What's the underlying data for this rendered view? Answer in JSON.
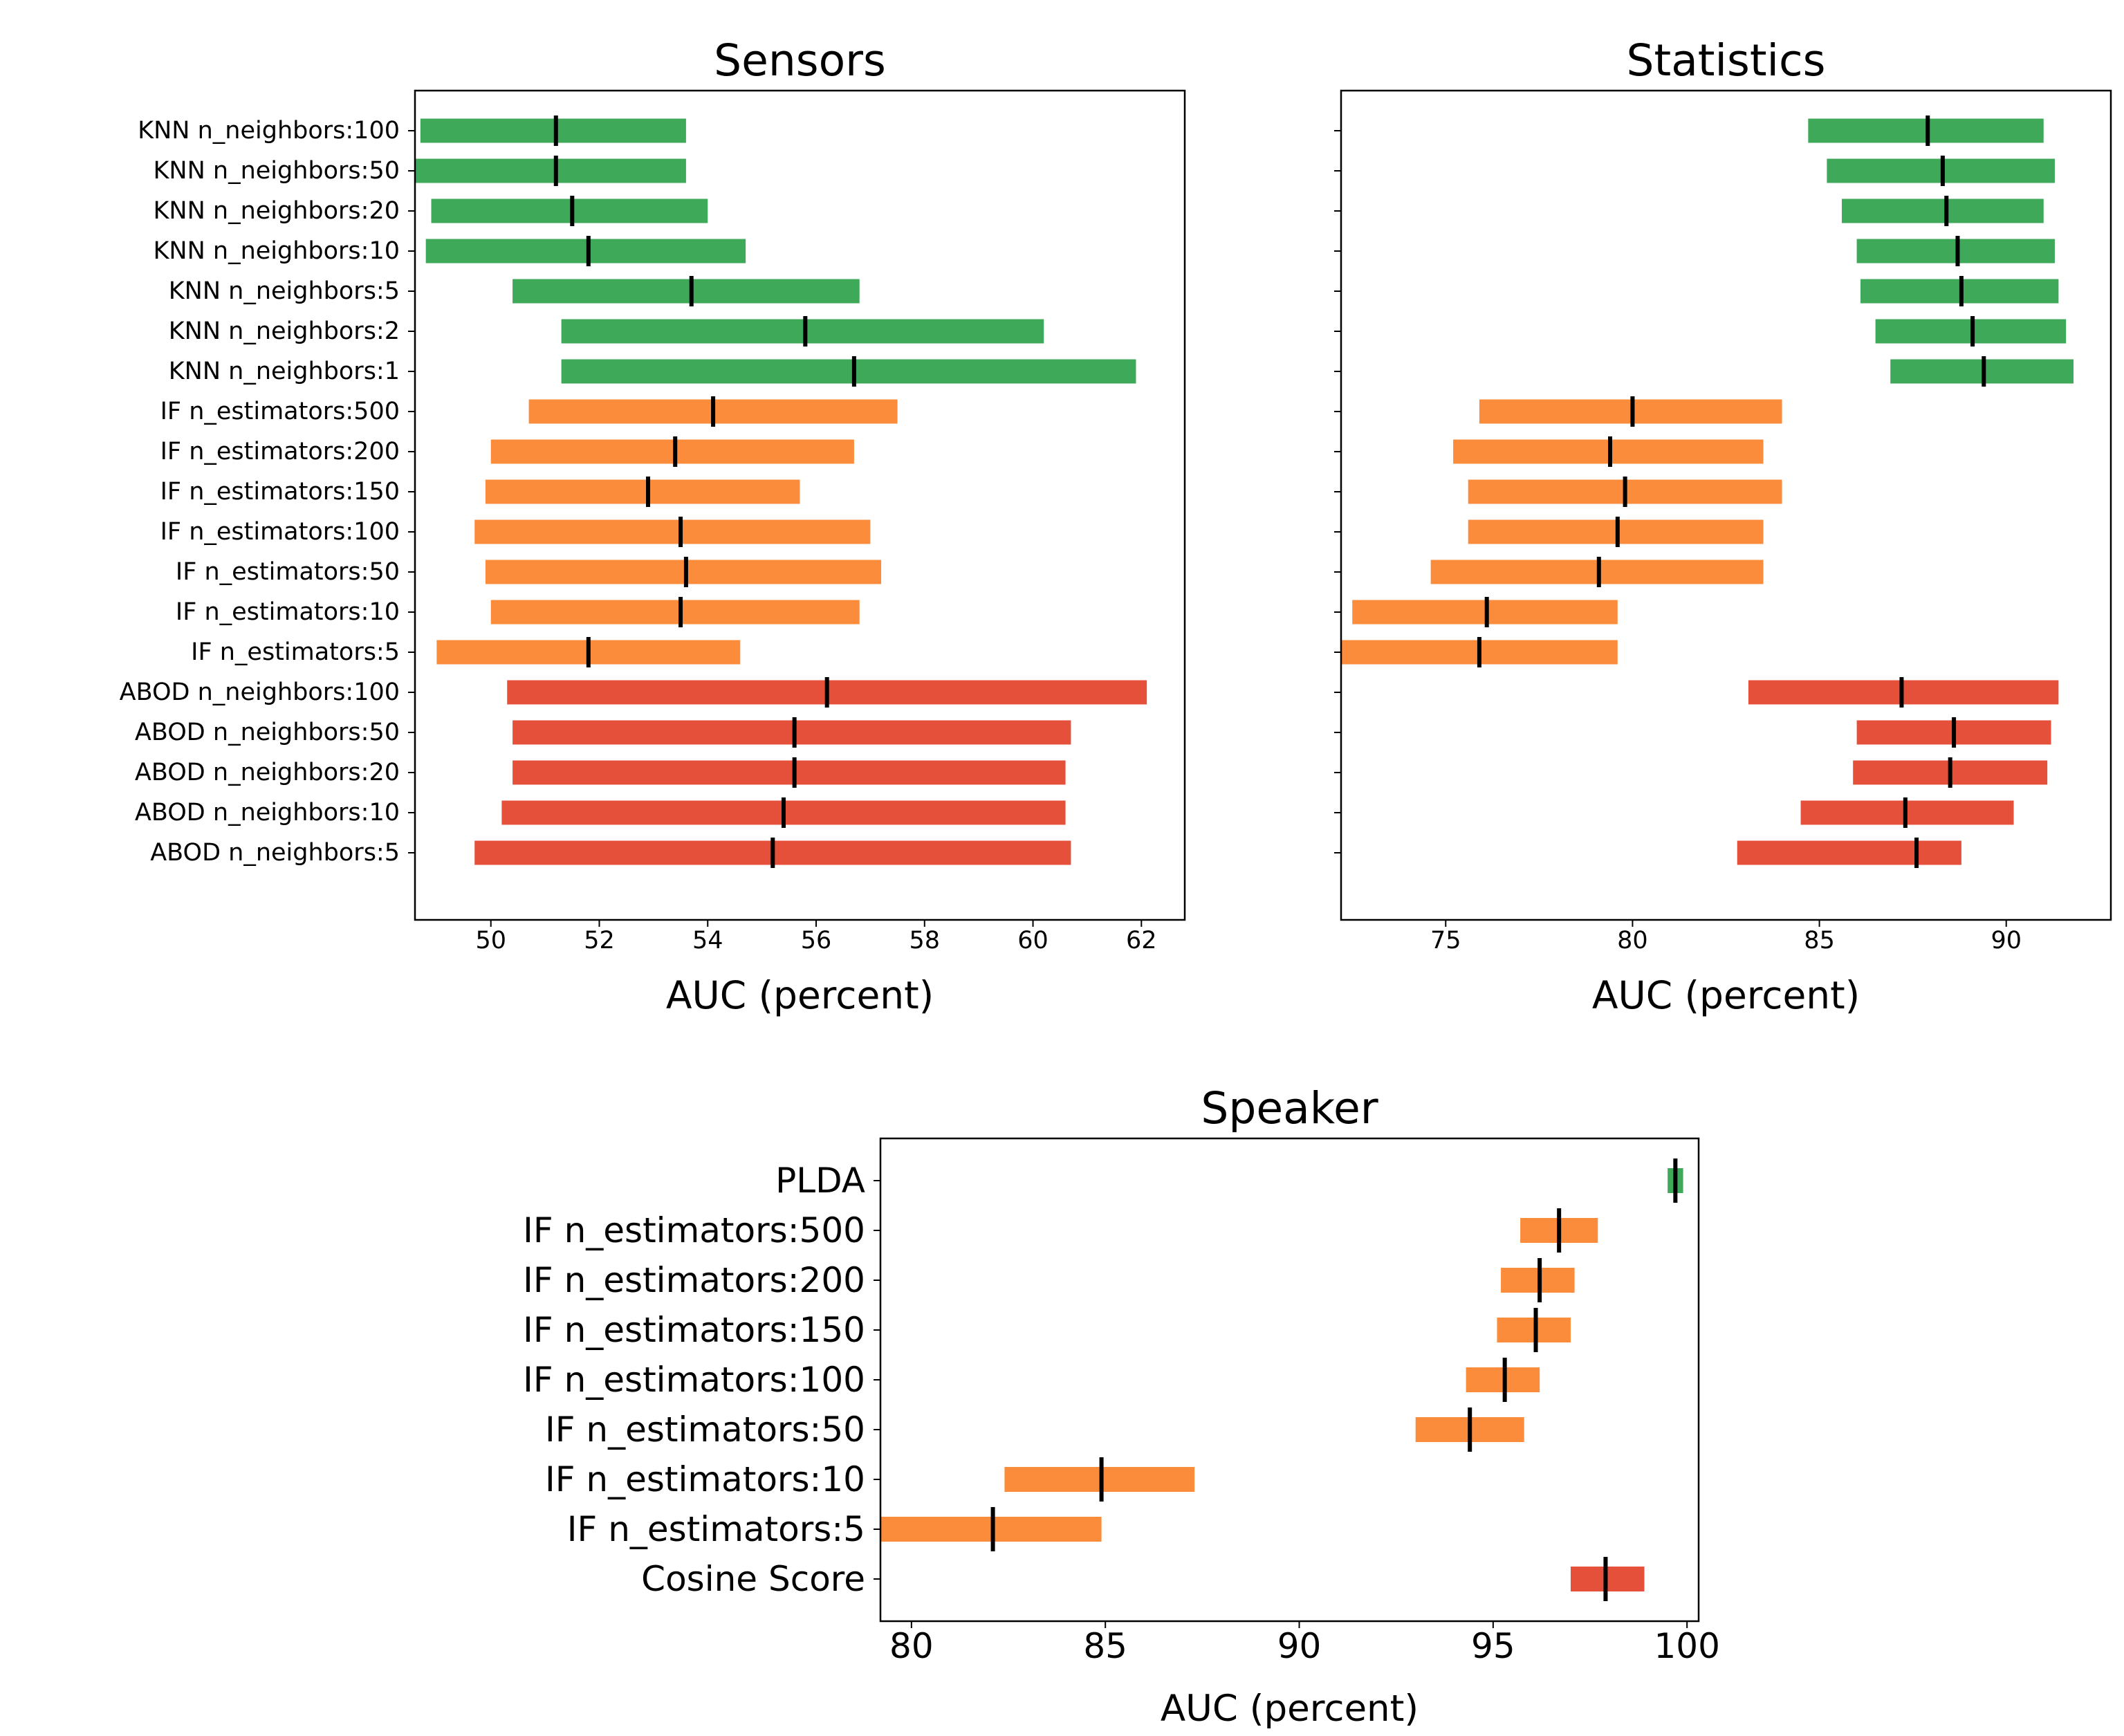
{
  "colors": {
    "knn": "#3fa95a",
    "if": "#fb8c3c",
    "abod": "#e5503a",
    "median": "#000000",
    "frame": "#000000"
  },
  "chart_data": [
    {
      "id": "sensors",
      "type": "range-bar",
      "title": "Sensors",
      "xlabel": "AUC (percent)",
      "xlim": [
        48.6,
        62.8
      ],
      "xticks": [
        50,
        52,
        54,
        56,
        58,
        60,
        62
      ],
      "show_ylabels": true,
      "rows": [
        {
          "label": "KNN n_neighbors:100",
          "group": "knn",
          "low": 48.7,
          "high": 53.6,
          "median": 51.2
        },
        {
          "label": "KNN n_neighbors:50",
          "group": "knn",
          "low": 48.6,
          "high": 53.6,
          "median": 51.2
        },
        {
          "label": "KNN n_neighbors:20",
          "group": "knn",
          "low": 48.9,
          "high": 54.0,
          "median": 51.5
        },
        {
          "label": "KNN n_neighbors:10",
          "group": "knn",
          "low": 48.8,
          "high": 54.7,
          "median": 51.8
        },
        {
          "label": "KNN n_neighbors:5",
          "group": "knn",
          "low": 50.4,
          "high": 56.8,
          "median": 53.7
        },
        {
          "label": "KNN n_neighbors:2",
          "group": "knn",
          "low": 51.3,
          "high": 60.2,
          "median": 55.8
        },
        {
          "label": "KNN n_neighbors:1",
          "group": "knn",
          "low": 51.3,
          "high": 61.9,
          "median": 56.7
        },
        {
          "label": "IF n_estimators:500",
          "group": "if",
          "low": 50.7,
          "high": 57.5,
          "median": 54.1
        },
        {
          "label": "IF n_estimators:200",
          "group": "if",
          "low": 50.0,
          "high": 56.7,
          "median": 53.4
        },
        {
          "label": "IF n_estimators:150",
          "group": "if",
          "low": 49.9,
          "high": 55.7,
          "median": 52.9
        },
        {
          "label": "IF n_estimators:100",
          "group": "if",
          "low": 49.7,
          "high": 57.0,
          "median": 53.5
        },
        {
          "label": "IF n_estimators:50",
          "group": "if",
          "low": 49.9,
          "high": 57.2,
          "median": 53.6
        },
        {
          "label": "IF n_estimators:10",
          "group": "if",
          "low": 50.0,
          "high": 56.8,
          "median": 53.5
        },
        {
          "label": "IF n_estimators:5",
          "group": "if",
          "low": 49.0,
          "high": 54.6,
          "median": 51.8
        },
        {
          "label": "ABOD n_neighbors:100",
          "group": "abod",
          "low": 50.3,
          "high": 62.1,
          "median": 56.2
        },
        {
          "label": "ABOD n_neighbors:50",
          "group": "abod",
          "low": 50.4,
          "high": 60.7,
          "median": 55.6
        },
        {
          "label": "ABOD n_neighbors:20",
          "group": "abod",
          "low": 50.4,
          "high": 60.6,
          "median": 55.6
        },
        {
          "label": "ABOD n_neighbors:10",
          "group": "abod",
          "low": 50.2,
          "high": 60.6,
          "median": 55.4
        },
        {
          "label": "ABOD n_neighbors:5",
          "group": "abod",
          "low": 49.7,
          "high": 60.7,
          "median": 55.2
        }
      ]
    },
    {
      "id": "statistics",
      "type": "range-bar",
      "title": "Statistics",
      "xlabel": "AUC (percent)",
      "xlim": [
        72.2,
        92.8
      ],
      "xticks": [
        75,
        80,
        85,
        90
      ],
      "show_ylabels": false,
      "rows": [
        {
          "label": "KNN n_neighbors:100",
          "group": "knn",
          "low": 84.7,
          "high": 91.0,
          "median": 87.9
        },
        {
          "label": "KNN n_neighbors:50",
          "group": "knn",
          "low": 85.2,
          "high": 91.3,
          "median": 88.3
        },
        {
          "label": "KNN n_neighbors:20",
          "group": "knn",
          "low": 85.6,
          "high": 91.0,
          "median": 88.4
        },
        {
          "label": "KNN n_neighbors:10",
          "group": "knn",
          "low": 86.0,
          "high": 91.3,
          "median": 88.7
        },
        {
          "label": "KNN n_neighbors:5",
          "group": "knn",
          "low": 86.1,
          "high": 91.4,
          "median": 88.8
        },
        {
          "label": "KNN n_neighbors:2",
          "group": "knn",
          "low": 86.5,
          "high": 91.6,
          "median": 89.1
        },
        {
          "label": "KNN n_neighbors:1",
          "group": "knn",
          "low": 86.9,
          "high": 91.8,
          "median": 89.4
        },
        {
          "label": "IF n_estimators:500",
          "group": "if",
          "low": 75.9,
          "high": 84.0,
          "median": 80.0
        },
        {
          "label": "IF n_estimators:200",
          "group": "if",
          "low": 75.2,
          "high": 83.5,
          "median": 79.4
        },
        {
          "label": "IF n_estimators:150",
          "group": "if",
          "low": 75.6,
          "high": 84.0,
          "median": 79.8
        },
        {
          "label": "IF n_estimators:100",
          "group": "if",
          "low": 75.6,
          "high": 83.5,
          "median": 79.6
        },
        {
          "label": "IF n_estimators:50",
          "group": "if",
          "low": 74.6,
          "high": 83.5,
          "median": 79.1
        },
        {
          "label": "IF n_estimators:10",
          "group": "if",
          "low": 72.5,
          "high": 79.6,
          "median": 76.1
        },
        {
          "label": "IF n_estimators:5",
          "group": "if",
          "low": 72.2,
          "high": 79.6,
          "median": 75.9
        },
        {
          "label": "ABOD n_neighbors:100",
          "group": "abod",
          "low": 83.1,
          "high": 91.4,
          "median": 87.2
        },
        {
          "label": "ABOD n_neighbors:50",
          "group": "abod",
          "low": 86.0,
          "high": 91.2,
          "median": 88.6
        },
        {
          "label": "ABOD n_neighbors:20",
          "group": "abod",
          "low": 85.9,
          "high": 91.1,
          "median": 88.5
        },
        {
          "label": "ABOD n_neighbors:10",
          "group": "abod",
          "low": 84.5,
          "high": 90.2,
          "median": 87.3
        },
        {
          "label": "ABOD n_neighbors:5",
          "group": "abod",
          "low": 82.8,
          "high": 88.8,
          "median": 87.6
        }
      ]
    },
    {
      "id": "speaker",
      "type": "range-bar",
      "title": "Speaker",
      "xlabel": "AUC (percent)",
      "xlim": [
        79.2,
        100.3
      ],
      "xticks": [
        80,
        85,
        90,
        95,
        100
      ],
      "show_ylabels": true,
      "rows": [
        {
          "label": "PLDA",
          "group": "knn",
          "low": 99.5,
          "high": 99.9,
          "median": 99.7
        },
        {
          "label": "IF n_estimators:500",
          "group": "if",
          "low": 95.7,
          "high": 97.7,
          "median": 96.7
        },
        {
          "label": "IF n_estimators:200",
          "group": "if",
          "low": 95.2,
          "high": 97.1,
          "median": 96.2
        },
        {
          "label": "IF n_estimators:150",
          "group": "if",
          "low": 95.1,
          "high": 97.0,
          "median": 96.1
        },
        {
          "label": "IF n_estimators:100",
          "group": "if",
          "low": 94.3,
          "high": 96.2,
          "median": 95.3
        },
        {
          "label": "IF n_estimators:50",
          "group": "if",
          "low": 93.0,
          "high": 95.8,
          "median": 94.4
        },
        {
          "label": "IF n_estimators:10",
          "group": "if",
          "low": 82.4,
          "high": 87.3,
          "median": 84.9
        },
        {
          "label": "IF n_estimators:5",
          "group": "if",
          "low": 79.2,
          "high": 84.9,
          "median": 82.1
        },
        {
          "label": "Cosine Score",
          "group": "abod",
          "low": 97.0,
          "high": 98.9,
          "median": 97.9
        }
      ]
    }
  ]
}
